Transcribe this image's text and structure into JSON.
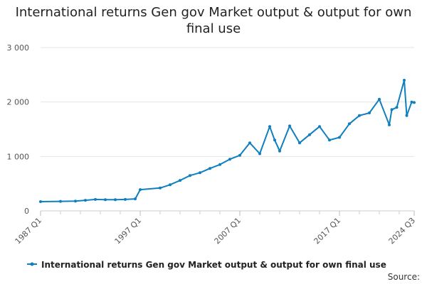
{
  "chart_data": {
    "type": "line",
    "title": "International returns Gen gov Market output & output for own final use",
    "xlabel": "",
    "ylabel": "",
    "ylim": [
      0,
      3000
    ],
    "y_ticks": [
      0,
      1000,
      2000,
      3000
    ],
    "y_tick_labels": [
      "0",
      "1 000",
      "2 000",
      "3 000"
    ],
    "x_tick_labels": [
      "1987 Q1",
      "1997 Q1",
      "2007 Q1",
      "2017 Q1",
      "2024 Q3"
    ],
    "x_tick_positions": [
      "1987 Q1",
      "1997 Q1",
      "2007 Q1",
      "2017 Q1",
      "2024 Q3"
    ],
    "x_range": [
      "1987 Q1",
      "2024 Q3"
    ],
    "grid": "horizontal",
    "legend_position": "bottom",
    "source_label": "Source:",
    "series": [
      {
        "name": "International returns Gen gov Market output & output for own final use",
        "color": "#0f7fc0",
        "x": [
          "1987 Q1",
          "1989 Q1",
          "1990 Q3",
          "1991 Q3",
          "1992 Q3",
          "1993 Q3",
          "1994 Q3",
          "1995 Q3",
          "1996 Q3",
          "1997 Q1",
          "1999 Q1",
          "2000 Q1",
          "2001 Q1",
          "2002 Q1",
          "2003 Q1",
          "2004 Q1",
          "2005 Q1",
          "2006 Q1",
          "2007 Q1",
          "2008 Q1",
          "2009 Q1",
          "2010 Q1",
          "2010 Q3",
          "2011 Q1",
          "2012 Q1",
          "2013 Q1",
          "2014 Q1",
          "2015 Q1",
          "2016 Q1",
          "2017 Q1",
          "2018 Q1",
          "2019 Q1",
          "2020 Q1",
          "2021 Q1",
          "2022 Q1",
          "2022 Q2",
          "2022 Q4",
          "2023 Q3",
          "2023 Q4",
          "2024 Q2",
          "2024 Q3"
        ],
        "values": [
          170,
          175,
          180,
          195,
          210,
          205,
          205,
          210,
          220,
          390,
          420,
          480,
          560,
          650,
          700,
          780,
          850,
          950,
          1020,
          1250,
          1050,
          1550,
          1300,
          1100,
          1560,
          1250,
          1400,
          1550,
          1300,
          1350,
          1600,
          1750,
          1800,
          2050,
          1580,
          1860,
          1900,
          2400,
          1750,
          2000,
          1990
        ]
      }
    ]
  }
}
